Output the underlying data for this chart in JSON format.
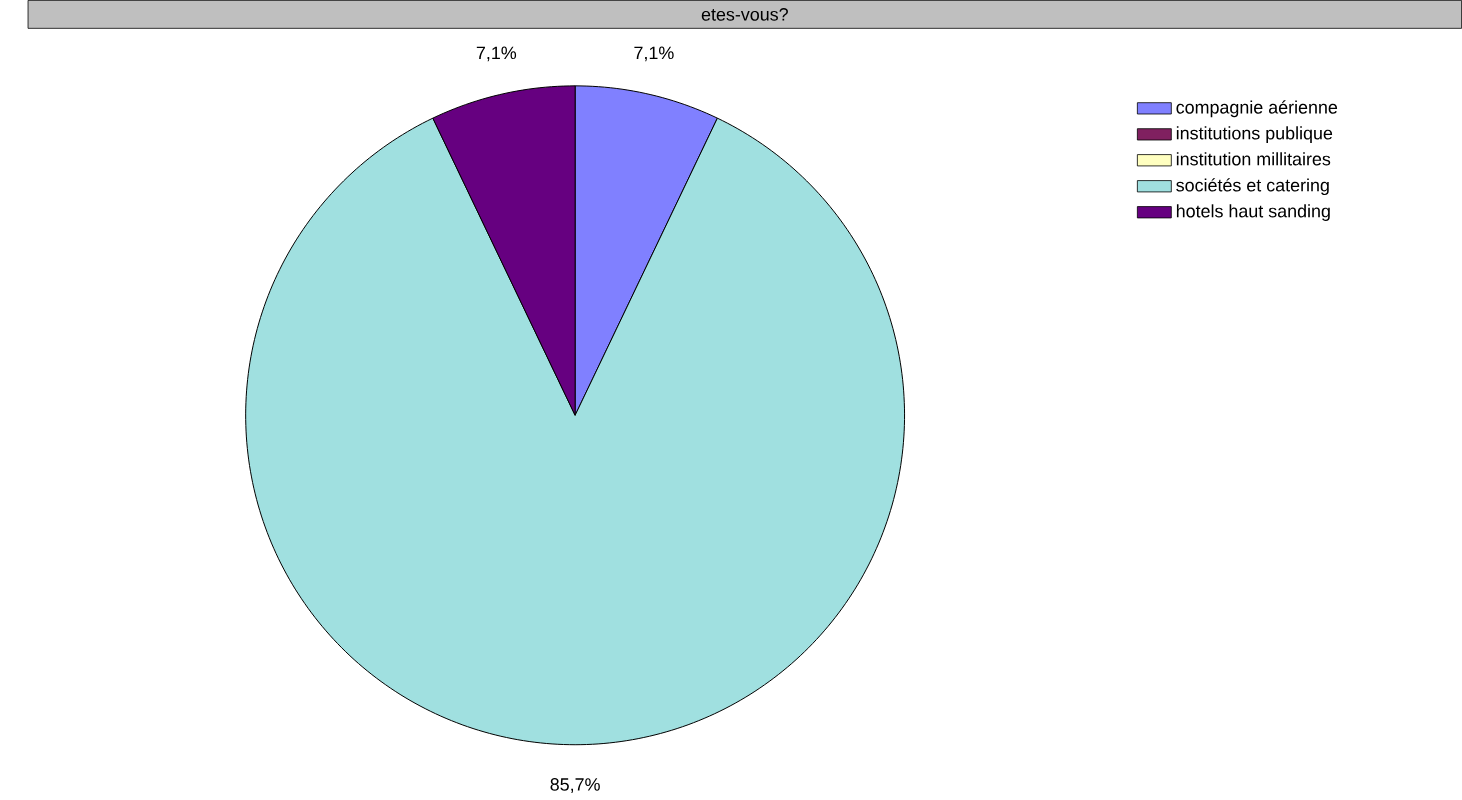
{
  "chart_data": {
    "type": "pie",
    "title": "etes-vous?",
    "categories": [
      "compagnie aérienne",
      "institutions publique",
      "institution millitaires",
      "sociétés et catering",
      "hotels haut sanding"
    ],
    "values": [
      7.1,
      0,
      0,
      85.7,
      7.1
    ],
    "colors": [
      "#8080ff",
      "#802060",
      "#ffffc0",
      "#a0e0e0",
      "#660080"
    ],
    "value_labels": [
      "7,1%",
      null,
      null,
      "85,7%",
      "7,1%"
    ],
    "legend": "right"
  }
}
